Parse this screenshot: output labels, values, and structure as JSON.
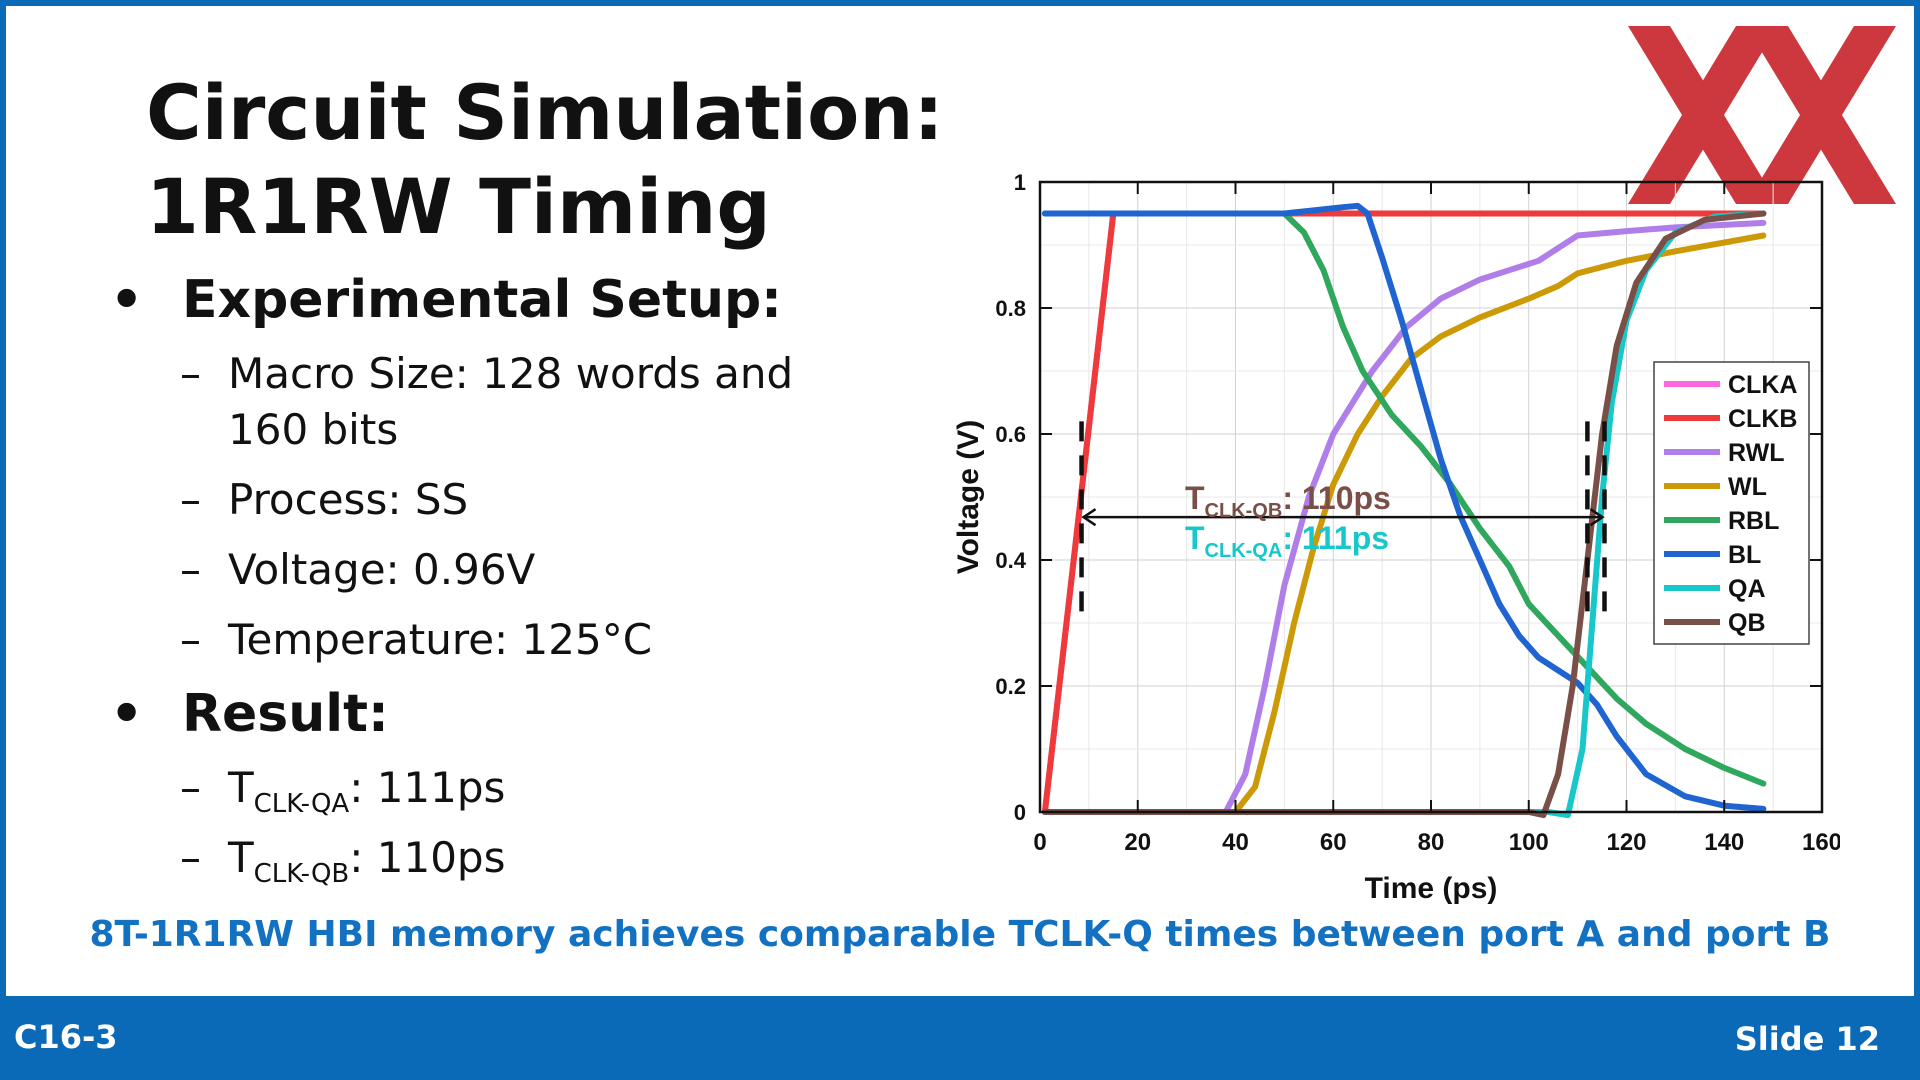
{
  "slide": {
    "title_lines": [
      "Circuit Simulation:",
      "1R1RW Timing"
    ],
    "bullets": [
      {
        "label": "Experimental Setup:",
        "items": [
          {
            "text": "Macro Size: 128 words and 160 bits"
          },
          {
            "text": "Process: SS"
          },
          {
            "text": "Voltage: 0.96V"
          },
          {
            "text": "Temperature: 125°C"
          }
        ]
      },
      {
        "label": "Result:",
        "items": [
          {
            "t": "T",
            "sub": "CLK-QA",
            "rest": ": 111ps"
          },
          {
            "t": "T",
            "sub": "CLK-QB",
            "rest": ": 110ps"
          }
        ]
      }
    ],
    "footer_note": "8T-1R1RW HBI memory achieves comparable TCLK-Q times between port A and port B",
    "session_code": "C16-3",
    "slide_number": "Slide 12",
    "bullet_glyph": "•",
    "dash_glyph": "–",
    "logo_colors": {
      "primary": "#c8282d"
    }
  },
  "chart_data": {
    "type": "line",
    "xlabel": "Time (ps)",
    "ylabel": "Voltage (V)",
    "xlim": [
      0,
      160
    ],
    "ylim": [
      0,
      1
    ],
    "xticks": [
      0,
      20,
      40,
      60,
      80,
      100,
      120,
      140,
      160
    ],
    "yticks": [
      0,
      0.2,
      0.4,
      0.6,
      0.8,
      1
    ],
    "ytick_labels": [
      "0",
      "0.2",
      "0.4",
      "0.6",
      "0.8",
      "1"
    ],
    "grid": true,
    "legend_position": "right",
    "series": [
      {
        "name": "CLKA",
        "color": "#ff66e0",
        "points": [
          [
            1,
            0
          ],
          [
            15,
            0.95
          ],
          [
            148,
            0.95
          ]
        ]
      },
      {
        "name": "CLKB",
        "color": "#ee3a3a",
        "points": [
          [
            1,
            0
          ],
          [
            15,
            0.95
          ],
          [
            148,
            0.95
          ]
        ]
      },
      {
        "name": "RWL",
        "color": "#b07ee8",
        "points": [
          [
            1,
            0
          ],
          [
            38,
            0
          ],
          [
            42,
            0.06
          ],
          [
            46,
            0.2
          ],
          [
            50,
            0.36
          ],
          [
            55,
            0.5
          ],
          [
            60,
            0.6
          ],
          [
            68,
            0.7
          ],
          [
            75,
            0.77
          ],
          [
            82,
            0.815
          ],
          [
            90,
            0.845
          ],
          [
            96,
            0.86
          ],
          [
            102,
            0.875
          ],
          [
            106,
            0.895
          ],
          [
            110,
            0.915
          ],
          [
            120,
            0.922
          ],
          [
            130,
            0.928
          ],
          [
            148,
            0.935
          ]
        ]
      },
      {
        "name": "WL",
        "color": "#cc9a06",
        "points": [
          [
            1,
            0
          ],
          [
            40,
            0
          ],
          [
            44,
            0.04
          ],
          [
            48,
            0.16
          ],
          [
            52,
            0.3
          ],
          [
            56,
            0.42
          ],
          [
            60,
            0.52
          ],
          [
            65,
            0.6
          ],
          [
            70,
            0.66
          ],
          [
            76,
            0.72
          ],
          [
            82,
            0.755
          ],
          [
            90,
            0.785
          ],
          [
            100,
            0.815
          ],
          [
            106,
            0.835
          ],
          [
            110,
            0.855
          ],
          [
            115,
            0.865
          ],
          [
            120,
            0.875
          ],
          [
            130,
            0.89
          ],
          [
            148,
            0.915
          ]
        ]
      },
      {
        "name": "RBL",
        "color": "#2fa75c",
        "points": [
          [
            1,
            0.95
          ],
          [
            50,
            0.95
          ],
          [
            54,
            0.92
          ],
          [
            58,
            0.86
          ],
          [
            62,
            0.77
          ],
          [
            66,
            0.7
          ],
          [
            72,
            0.63
          ],
          [
            78,
            0.58
          ],
          [
            84,
            0.52
          ],
          [
            90,
            0.45
          ],
          [
            96,
            0.39
          ],
          [
            100,
            0.33
          ],
          [
            106,
            0.28
          ],
          [
            112,
            0.23
          ],
          [
            118,
            0.18
          ],
          [
            124,
            0.14
          ],
          [
            132,
            0.1
          ],
          [
            140,
            0.07
          ],
          [
            148,
            0.045
          ]
        ]
      },
      {
        "name": "BL",
        "color": "#1f64d1",
        "points": [
          [
            1,
            0.95
          ],
          [
            50,
            0.95
          ],
          [
            62,
            0.96
          ],
          [
            65,
            0.962
          ],
          [
            67,
            0.95
          ],
          [
            70,
            0.88
          ],
          [
            74,
            0.78
          ],
          [
            78,
            0.67
          ],
          [
            82,
            0.56
          ],
          [
            86,
            0.47
          ],
          [
            90,
            0.4
          ],
          [
            94,
            0.33
          ],
          [
            98,
            0.28
          ],
          [
            102,
            0.245
          ],
          [
            106,
            0.225
          ],
          [
            110,
            0.205
          ],
          [
            114,
            0.17
          ],
          [
            118,
            0.12
          ],
          [
            124,
            0.06
          ],
          [
            132,
            0.025
          ],
          [
            140,
            0.01
          ],
          [
            148,
            0.005
          ]
        ]
      },
      {
        "name": "QA",
        "color": "#17c7c9",
        "points": [
          [
            1,
            0
          ],
          [
            104,
            0
          ],
          [
            108,
            -0.005
          ],
          [
            111,
            0.1
          ],
          [
            113,
            0.3
          ],
          [
            115,
            0.5
          ],
          [
            117,
            0.65
          ],
          [
            120,
            0.78
          ],
          [
            124,
            0.86
          ],
          [
            130,
            0.92
          ],
          [
            138,
            0.945
          ],
          [
            148,
            0.95
          ]
        ]
      },
      {
        "name": "QB",
        "color": "#7a4f47",
        "points": [
          [
            1,
            0
          ],
          [
            100,
            0
          ],
          [
            103,
            -0.005
          ],
          [
            106,
            0.06
          ],
          [
            109,
            0.2
          ],
          [
            112,
            0.4
          ],
          [
            115,
            0.6
          ],
          [
            118,
            0.74
          ],
          [
            122,
            0.84
          ],
          [
            128,
            0.91
          ],
          [
            136,
            0.94
          ],
          [
            148,
            0.95
          ]
        ]
      }
    ],
    "annotations": [
      {
        "t": "T",
        "sub": "CLK-QB",
        "rest": ": 110ps",
        "color": "#7a4f47"
      },
      {
        "t": "T",
        "sub": "CLK-QA",
        "rest": ": 111ps",
        "color": "#17c7c9"
      }
    ],
    "marker_x": [
      8.5,
      115.5
    ],
    "marker_y_range": [
      0.31,
      0.62
    ],
    "arrow_y": 0.468
  }
}
